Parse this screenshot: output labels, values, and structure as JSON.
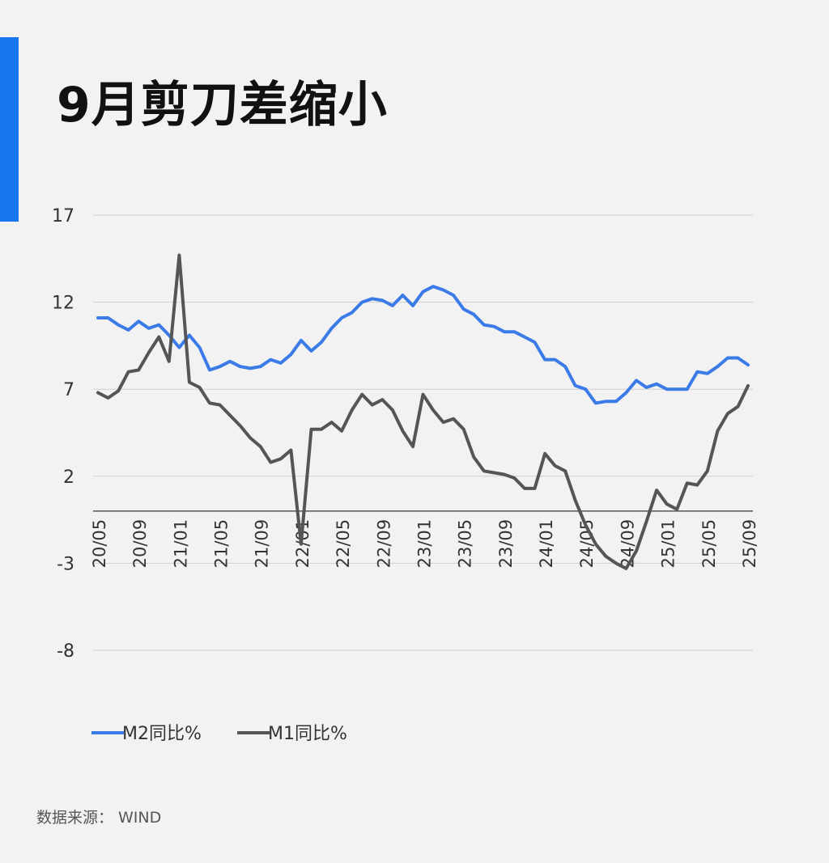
{
  "title": "9月剪刀差缩小",
  "source": {
    "label": "数据来源：",
    "value": "WIND"
  },
  "colors": {
    "accent": "#1677ee",
    "m2": "#3b7be8",
    "m1": "#555555",
    "grid": "#d0d0d0",
    "zero": "#555555"
  },
  "chart_data": {
    "type": "line",
    "ylim": [
      -8,
      17
    ],
    "yticks": [
      17,
      12,
      7,
      2,
      -3,
      -8
    ],
    "x_tick_labels": [
      "20/05",
      "20/09",
      "21/01",
      "21/05",
      "21/09",
      "22/01",
      "22/05",
      "22/09",
      "23/01",
      "23/05",
      "23/09",
      "24/01",
      "24/05",
      "24/09",
      "25/01",
      "25/05",
      "25/09"
    ],
    "x": [
      "20/05",
      "20/06",
      "20/07",
      "20/08",
      "20/09",
      "20/10",
      "20/11",
      "20/12",
      "21/01",
      "21/02",
      "21/03",
      "21/04",
      "21/05",
      "21/06",
      "21/07",
      "21/08",
      "21/09",
      "21/10",
      "21/11",
      "21/12",
      "22/01",
      "22/02",
      "22/03",
      "22/04",
      "22/05",
      "22/06",
      "22/07",
      "22/08",
      "22/09",
      "22/10",
      "22/11",
      "22/12",
      "23/01",
      "23/02",
      "23/03",
      "23/04",
      "23/05",
      "23/06",
      "23/07",
      "23/08",
      "23/09",
      "23/10",
      "23/11",
      "23/12",
      "24/01",
      "24/02",
      "24/03",
      "24/04",
      "24/05",
      "24/06",
      "24/07",
      "24/08",
      "24/09",
      "24/10",
      "24/11",
      "24/12",
      "25/01",
      "25/02",
      "25/03",
      "25/04",
      "25/05",
      "25/06",
      "25/07",
      "25/08",
      "25/09"
    ],
    "legend_position": "bottom-left",
    "series": [
      {
        "name": "M2同比%",
        "values": [
          11.1,
          11.1,
          10.7,
          10.4,
          10.9,
          10.5,
          10.7,
          10.1,
          9.4,
          10.1,
          9.4,
          8.1,
          8.3,
          8.6,
          8.3,
          8.2,
          8.3,
          8.7,
          8.5,
          9.0,
          9.8,
          9.2,
          9.7,
          10.5,
          11.1,
          11.4,
          12.0,
          12.2,
          12.1,
          11.8,
          12.4,
          11.8,
          12.6,
          12.9,
          12.7,
          12.4,
          11.6,
          11.3,
          10.7,
          10.6,
          10.3,
          10.3,
          10.0,
          9.7,
          8.7,
          8.7,
          8.3,
          7.2,
          7.0,
          6.2,
          6.3,
          6.3,
          6.8,
          7.5,
          7.1,
          7.3,
          7.0,
          7.0,
          7.0,
          8.0,
          7.9,
          8.3,
          8.8,
          8.8,
          8.4
        ]
      },
      {
        "name": "M1同比%",
        "values": [
          6.8,
          6.5,
          6.9,
          8.0,
          8.1,
          9.1,
          10.0,
          8.6,
          14.7,
          7.4,
          7.1,
          6.2,
          6.1,
          5.5,
          4.9,
          4.2,
          3.7,
          2.8,
          3.0,
          3.5,
          -1.9,
          4.7,
          4.7,
          5.1,
          4.6,
          5.8,
          6.7,
          6.1,
          6.4,
          5.8,
          4.6,
          3.7,
          6.7,
          5.8,
          5.1,
          5.3,
          4.7,
          3.1,
          2.3,
          2.2,
          2.1,
          1.9,
          1.3,
          1.3,
          3.3,
          2.6,
          2.3,
          0.6,
          -0.8,
          -1.9,
          -2.6,
          -3.0,
          -3.3,
          -2.3,
          -0.6,
          1.2,
          0.4,
          0.1,
          1.6,
          1.5,
          2.3,
          4.6,
          5.6,
          6.0,
          7.2
        ]
      }
    ]
  }
}
